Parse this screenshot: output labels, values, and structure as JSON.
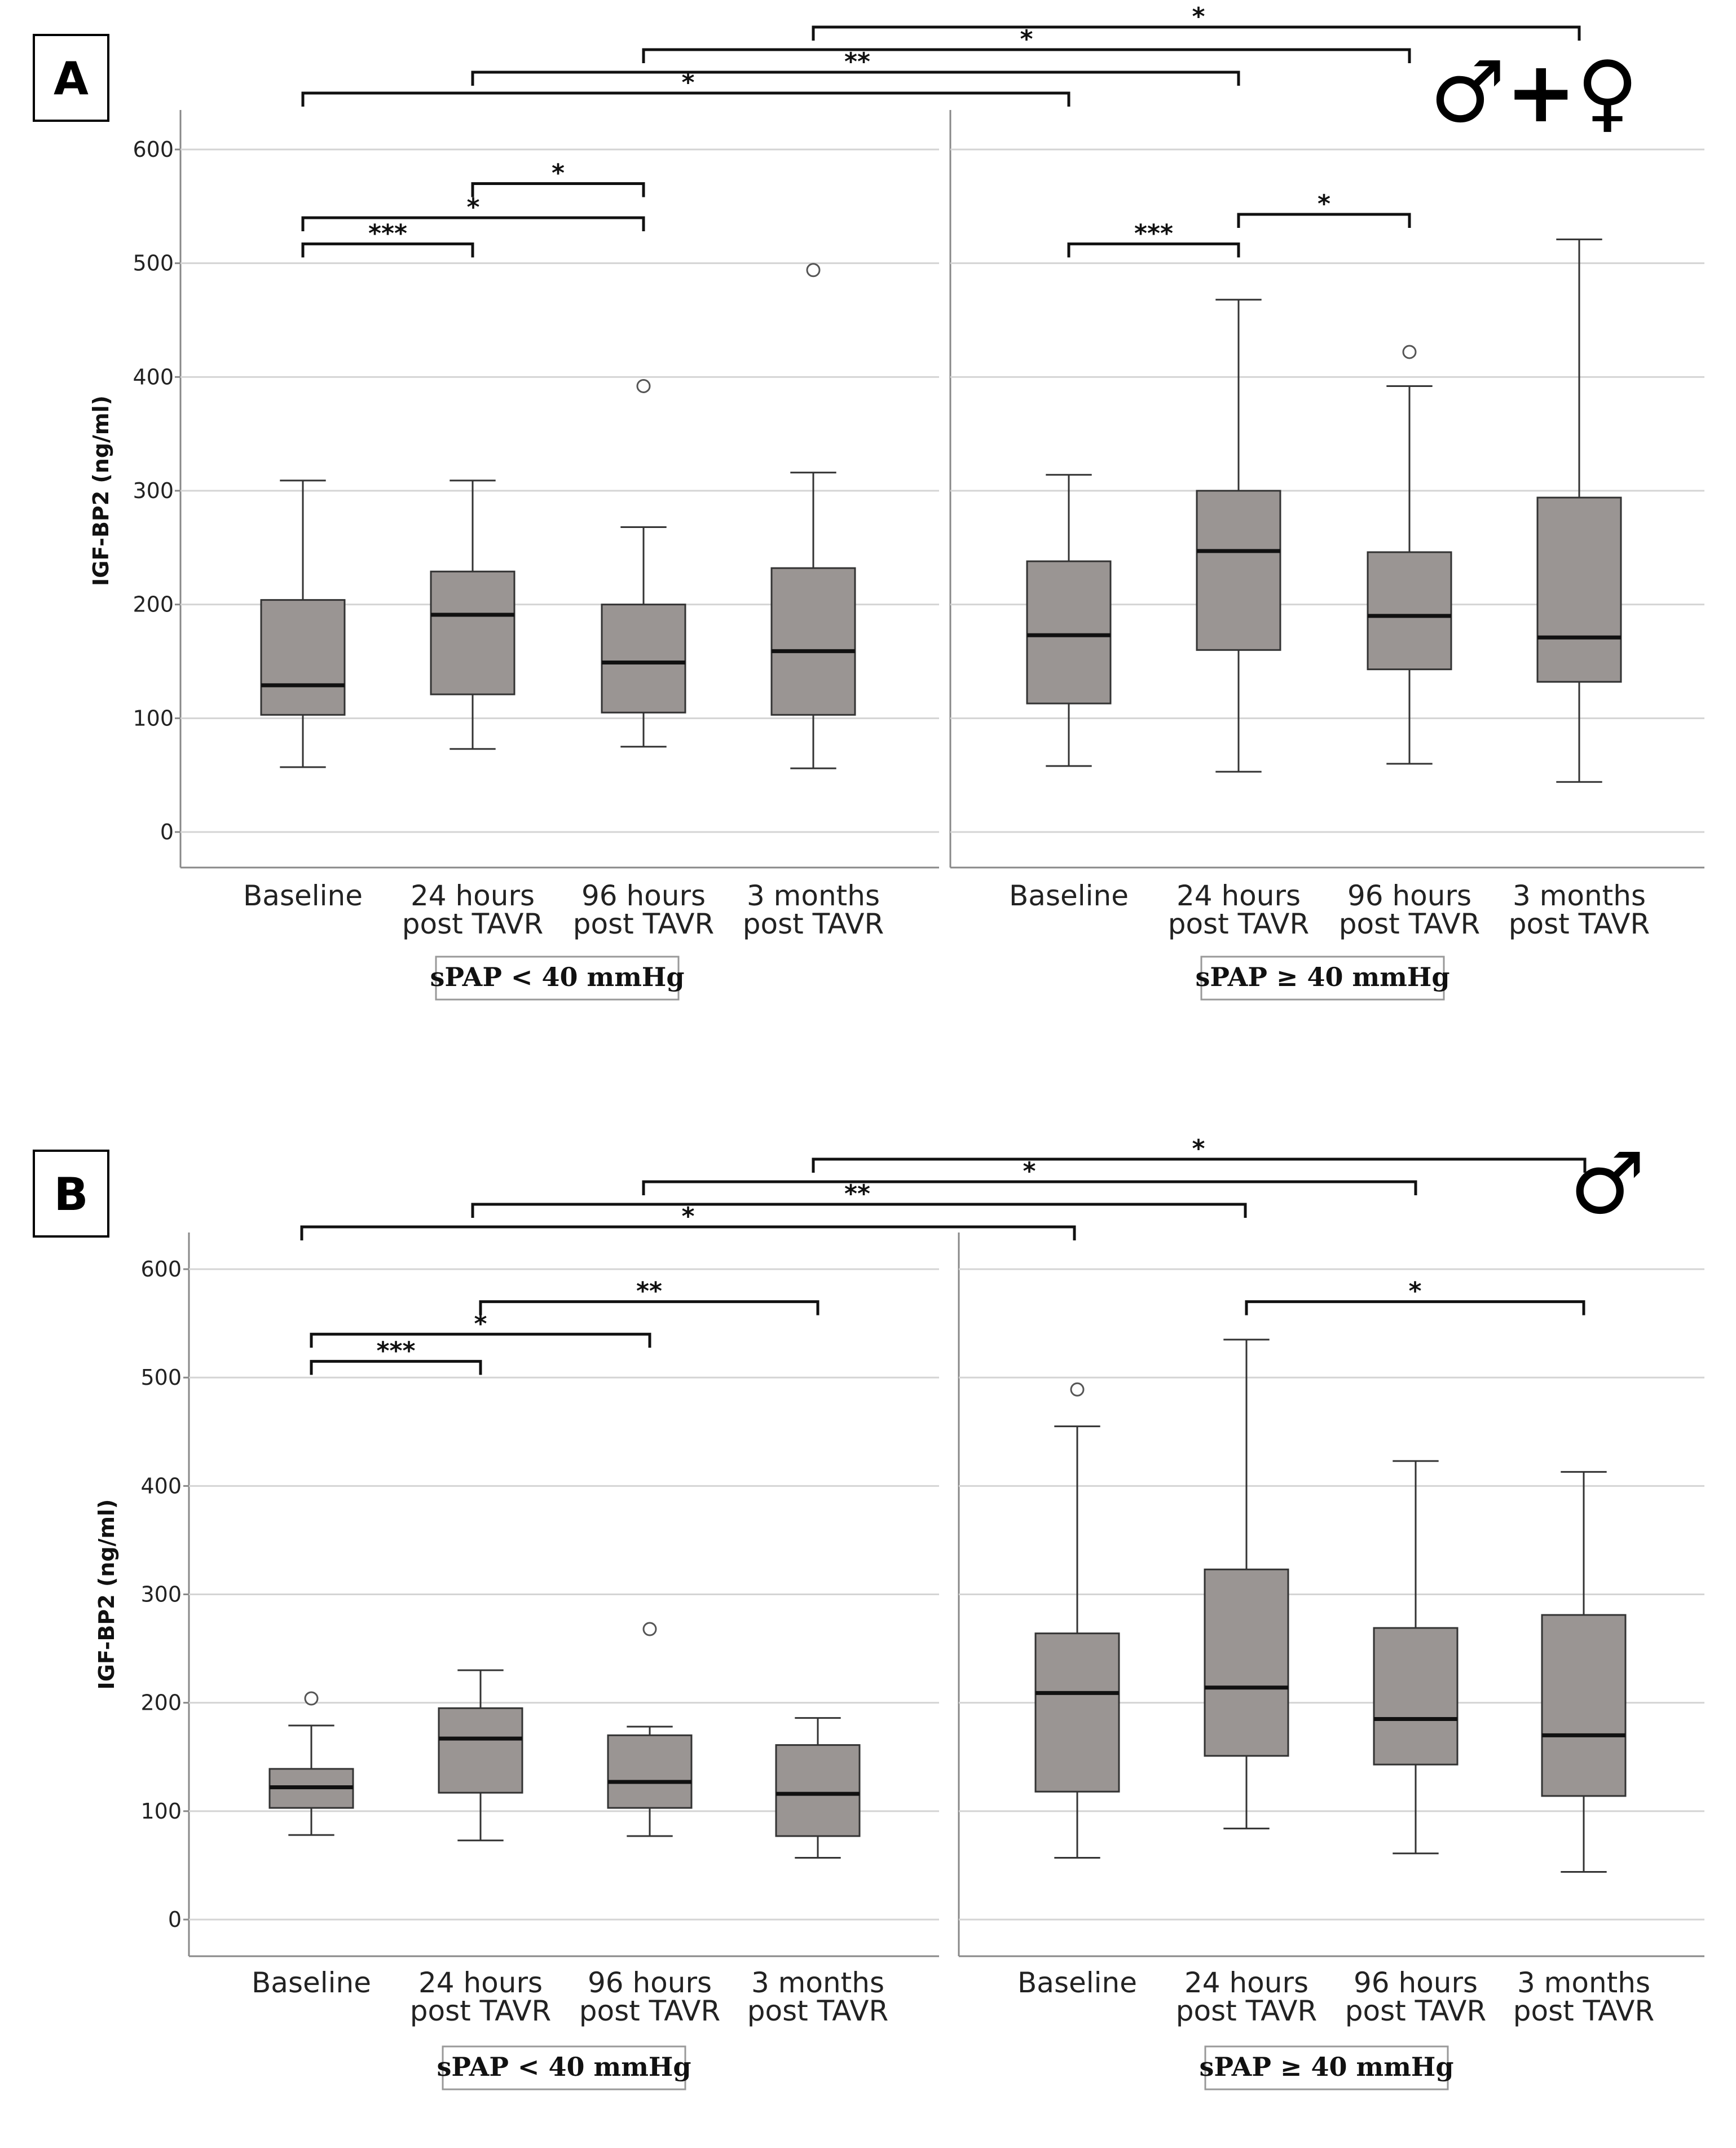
{
  "colors": {
    "box_fill": "#9a9593",
    "box_stroke": "#333333",
    "grid": "#d4d4d4",
    "axis": "#888888",
    "text": "#222222"
  },
  "chart_data": [
    {
      "panel": "A",
      "type": "box",
      "sex_symbol": "♂+♀",
      "ylabel": "IGF-BP2 (ng/ml)",
      "ylim": [
        0,
        600
      ],
      "yticks": [
        0,
        100,
        200,
        300,
        400,
        500,
        600
      ],
      "grid": true,
      "groups": [
        {
          "label": "sPAP < 40 mmHg",
          "categories": [
            [
              "Baseline"
            ],
            [
              "24 hours",
              "post TAVR"
            ],
            [
              "96 hours",
              "post TAVR"
            ],
            [
              "3 months",
              "post TAVR"
            ]
          ],
          "boxes": [
            {
              "min": 57,
              "q1": 103,
              "median": 129,
              "q3": 204,
              "max": 309,
              "outliers": []
            },
            {
              "min": 73,
              "q1": 121,
              "median": 191,
              "q3": 229,
              "max": 309,
              "outliers": []
            },
            {
              "min": 75,
              "q1": 105,
              "median": 149,
              "q3": 200,
              "max": 268,
              "outliers": [
                392
              ]
            },
            {
              "min": 56,
              "q1": 103,
              "median": 159,
              "q3": 232,
              "max": 316,
              "outliers": [
                494
              ]
            }
          ]
        },
        {
          "label": "sPAP ≥ 40 mmHg",
          "categories": [
            [
              "Baseline"
            ],
            [
              "24 hours",
              "post TAVR"
            ],
            [
              "96 hours",
              "post TAVR"
            ],
            [
              "3 months",
              "post TAVR"
            ]
          ],
          "boxes": [
            {
              "min": 58,
              "q1": 113,
              "median": 173,
              "q3": 238,
              "max": 314,
              "outliers": []
            },
            {
              "min": 53,
              "q1": 160,
              "median": 247,
              "q3": 300,
              "max": 468,
              "outliers": []
            },
            {
              "min": 60,
              "q1": 143,
              "median": 190,
              "q3": 246,
              "max": 392,
              "outliers": [
                422
              ]
            },
            {
              "min": 44,
              "q1": 132,
              "median": 171,
              "q3": 294,
              "max": 521,
              "outliers": []
            }
          ]
        }
      ],
      "within_brackets": [
        {
          "group": 0,
          "from": 0,
          "to": 1,
          "level": 517,
          "label": "***"
        },
        {
          "group": 0,
          "from": 0,
          "to": 2,
          "level": 540,
          "label": "*"
        },
        {
          "group": 0,
          "from": 1,
          "to": 2,
          "level": 570,
          "label": "*"
        },
        {
          "group": 1,
          "from": 0,
          "to": 1,
          "level": 517,
          "label": "***"
        },
        {
          "group": 1,
          "from": 1,
          "to": 2,
          "level": 543,
          "label": "*"
        }
      ],
      "cross_brackets": [
        {
          "from": 0,
          "to": 0,
          "label": "*"
        },
        {
          "from": 1,
          "to": 1,
          "label": "**"
        },
        {
          "from": 2,
          "to": 2,
          "label": "*"
        },
        {
          "from": 3,
          "to": 3,
          "label": "*"
        }
      ]
    },
    {
      "panel": "B",
      "type": "box",
      "sex_symbol": "♂",
      "ylabel": "IGF-BP2 (ng/ml)",
      "ylim": [
        0,
        600
      ],
      "yticks": [
        0,
        100,
        200,
        300,
        400,
        500,
        600
      ],
      "grid": true,
      "groups": [
        {
          "label": "sPAP < 40 mmHg",
          "categories": [
            [
              "Baseline"
            ],
            [
              "24 hours",
              "post TAVR"
            ],
            [
              "96 hours",
              "post TAVR"
            ],
            [
              "3 months",
              "post TAVR"
            ]
          ],
          "boxes": [
            {
              "min": 78,
              "q1": 103,
              "median": 122,
              "q3": 139,
              "max": 179,
              "outliers": [
                204
              ]
            },
            {
              "min": 73,
              "q1": 117,
              "median": 167,
              "q3": 195,
              "max": 230,
              "outliers": []
            },
            {
              "min": 77,
              "q1": 103,
              "median": 127,
              "q3": 170,
              "max": 178,
              "outliers": [
                268
              ]
            },
            {
              "min": 57,
              "q1": 77,
              "median": 116,
              "q3": 161,
              "max": 186,
              "outliers": []
            }
          ]
        },
        {
          "label": "sPAP ≥ 40 mmHg",
          "categories": [
            [
              "Baseline"
            ],
            [
              "24 hours",
              "post TAVR"
            ],
            [
              "96 hours",
              "post TAVR"
            ],
            [
              "3 months",
              "post TAVR"
            ]
          ],
          "boxes": [
            {
              "min": 57,
              "q1": 118,
              "median": 209,
              "q3": 264,
              "max": 455,
              "outliers": [
                489
              ]
            },
            {
              "min": 84,
              "q1": 151,
              "median": 214,
              "q3": 323,
              "max": 535,
              "outliers": []
            },
            {
              "min": 61,
              "q1": 143,
              "median": 185,
              "q3": 269,
              "max": 423,
              "outliers": []
            },
            {
              "min": 44,
              "q1": 114,
              "median": 170,
              "q3": 281,
              "max": 413,
              "outliers": []
            }
          ]
        }
      ],
      "within_brackets": [
        {
          "group": 0,
          "from": 0,
          "to": 1,
          "level": 515,
          "label": "***"
        },
        {
          "group": 0,
          "from": 0,
          "to": 2,
          "level": 540,
          "label": "*"
        },
        {
          "group": 0,
          "from": 1,
          "to": 3,
          "level": 570,
          "label": "**"
        },
        {
          "group": 1,
          "from": 1,
          "to": 3,
          "level": 570,
          "label": "*"
        }
      ],
      "cross_brackets": [
        {
          "from": 0,
          "to": 0,
          "label": "*"
        },
        {
          "from": 1,
          "to": 1,
          "label": "**"
        },
        {
          "from": 2,
          "to": 2,
          "label": "*"
        },
        {
          "from": 3,
          "to": 3,
          "label": "*"
        }
      ]
    }
  ]
}
